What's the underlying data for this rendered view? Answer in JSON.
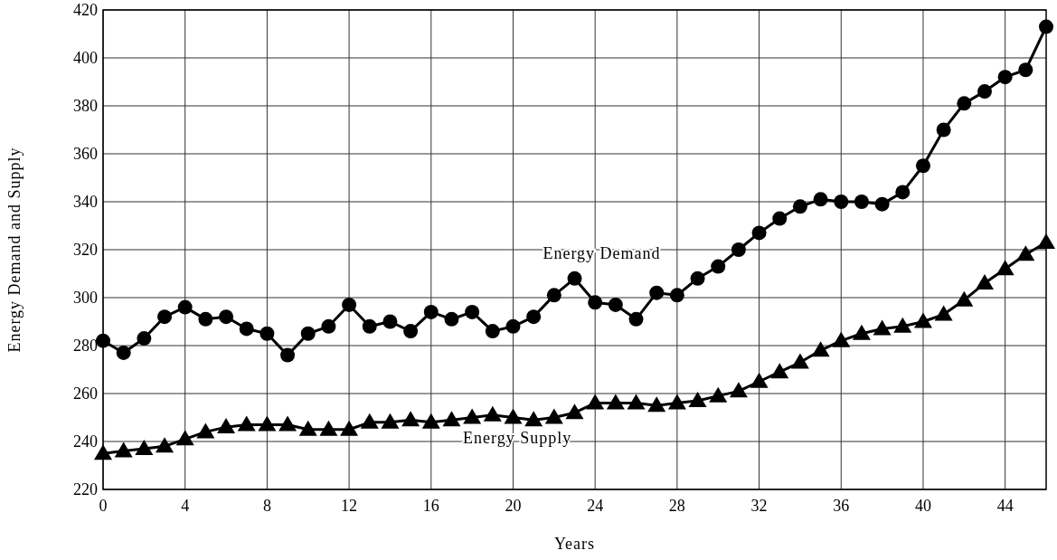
{
  "chart_data": {
    "type": "line",
    "xlabel": "Years",
    "ylabel": "Energy Demand and Supply",
    "xlim": [
      0,
      46
    ],
    "xticks": [
      0,
      4,
      8,
      12,
      16,
      20,
      24,
      28,
      32,
      36,
      40,
      44
    ],
    "ylim": [
      220,
      420
    ],
    "yticks": [
      220,
      240,
      260,
      280,
      300,
      320,
      340,
      360,
      380,
      400,
      420
    ],
    "grid": true,
    "line_style": "solid",
    "x": [
      0,
      1,
      2,
      3,
      4,
      5,
      6,
      7,
      8,
      9,
      10,
      11,
      12,
      13,
      14,
      15,
      16,
      17,
      18,
      19,
      20,
      21,
      22,
      23,
      24,
      25,
      26,
      27,
      28,
      29,
      30,
      31,
      32,
      33,
      34,
      35,
      36,
      37,
      38,
      39,
      40,
      41,
      42,
      43,
      44,
      45,
      46
    ],
    "series": [
      {
        "name": "Energy Demand",
        "color": "#000000",
        "marker": "circle",
        "values": [
          282,
          277,
          283,
          292,
          296,
          291,
          292,
          287,
          285,
          276,
          285,
          288,
          297,
          288,
          290,
          286,
          294,
          291,
          294,
          286,
          288,
          292,
          301,
          308,
          298,
          297,
          291,
          302,
          301,
          308,
          313,
          320,
          327,
          333,
          338,
          341,
          340,
          340,
          339,
          344,
          355,
          370,
          381,
          386,
          392,
          395,
          413
        ]
      },
      {
        "name": "Energy Supply",
        "color": "#000000",
        "marker": "triangle",
        "values": [
          235,
          236,
          237,
          238,
          241,
          244,
          246,
          247,
          247,
          247,
          245,
          245,
          245,
          248,
          248,
          249,
          248,
          249,
          250,
          251,
          250,
          249,
          250,
          252,
          256,
          256,
          256,
          255,
          256,
          257,
          259,
          261,
          265,
          269,
          273,
          278,
          282,
          285,
          287,
          288,
          290,
          293,
          299,
          306,
          312,
          318,
          323
        ]
      }
    ]
  }
}
